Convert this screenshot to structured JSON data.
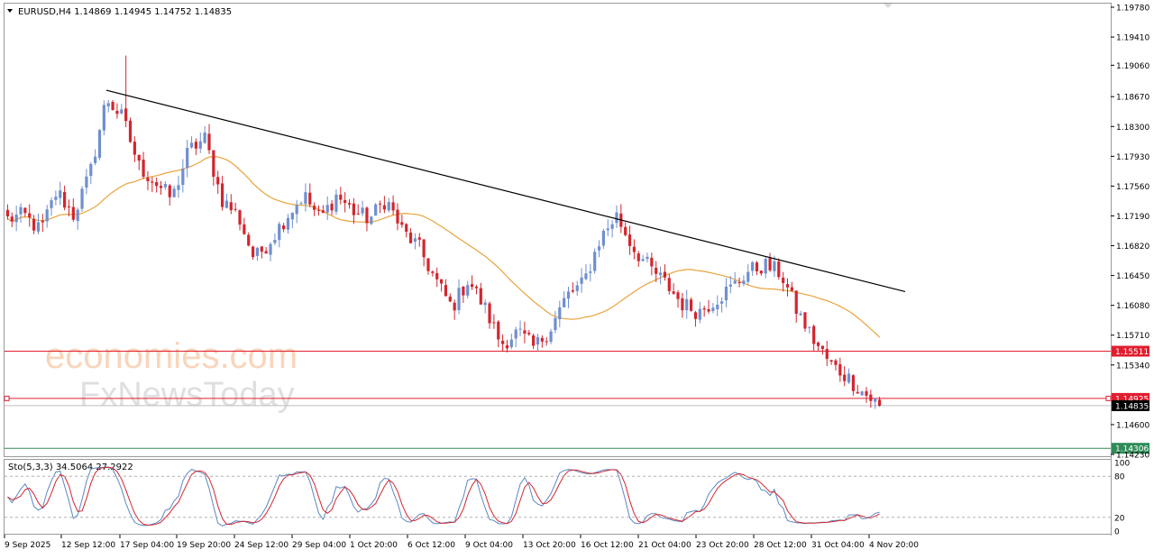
{
  "chart_data": [
    {
      "type": "candlestick",
      "symbol_header": "EURUSD,H4  1.14869 1.14945 1.14752 1.14835",
      "y_axis_ticks": [
        "1.19780",
        "1.19410",
        "1.19060",
        "1.18670",
        "1.18300",
        "1.17930",
        "1.17560",
        "1.17190",
        "1.16820",
        "1.16450",
        "1.16080",
        "1.15710",
        "1.15340",
        "1.14600",
        "1.14230"
      ],
      "ylim": [
        1.1423,
        1.1978
      ],
      "x_axis_labels": [
        "9 Sep 2025",
        "12 Sep 12:00",
        "17 Sep 04:00",
        "19 Sep 20:00",
        "24 Sep 12:00",
        "29 Sep 04:00",
        "1 Oct 20:00",
        "6 Oct 12:00",
        "9 Oct 04:00",
        "13 Oct 20:00",
        "16 Oct 12:00",
        "21 Oct 04:00",
        "23 Oct 20:00",
        "28 Oct 12:00",
        "31 Oct 04:00",
        "4 Nov 20:00"
      ],
      "close_anchors": [
        1.1715,
        1.172,
        1.17,
        1.175,
        1.172,
        1.177,
        1.1865,
        1.184,
        1.178,
        1.176,
        1.174,
        1.18,
        1.1815,
        1.174,
        1.172,
        1.1665,
        1.169,
        1.172,
        1.1745,
        1.1715,
        1.1745,
        1.1725,
        1.1715,
        1.174,
        1.17,
        1.168,
        1.164,
        1.1605,
        1.164,
        1.1605,
        1.156,
        1.1575,
        1.1555,
        1.158,
        1.162,
        1.1635,
        1.169,
        1.172,
        1.168,
        1.1655,
        1.1635,
        1.161,
        1.16,
        1.1615,
        1.163,
        1.165,
        1.1658,
        1.1648,
        1.16,
        1.1565,
        1.1535,
        1.152,
        1.15,
        1.14835
      ],
      "series": [
        {
          "name": "",
          "type": "moving-average",
          "color": "#e8a33c"
        }
      ],
      "horizontal_levels": [
        {
          "value": 1.15511,
          "label": "1.15511",
          "color": "#e01e2e"
        },
        {
          "value": 1.14925,
          "label": "1.14925",
          "color": "#e01e2e"
        },
        {
          "value": 1.14835,
          "label": "1.14835",
          "color": "#000000"
        },
        {
          "value": 1.14306,
          "label": "1.14306",
          "color": "#2e8b57"
        }
      ],
      "trendline": {
        "from": {
          "date": "12 Sep",
          "price": 1.1875
        },
        "to": {
          "date": "4 Nov",
          "price": 1.1625
        },
        "color": "#000000"
      },
      "colors": {
        "bull": "#6f8fd0",
        "bear": "#d2262e"
      }
    },
    {
      "type": "line",
      "title": "Sto(5,3,3) 34.5064 27.2922",
      "ylim": [
        0,
        100
      ],
      "y_axis_ticks": [
        "100",
        "80",
        "20",
        "0"
      ],
      "levels": [
        80,
        20
      ],
      "series": [
        {
          "name": "",
          "color": "#5b86c5"
        },
        {
          "name": "",
          "color": "#d2262e"
        }
      ]
    }
  ],
  "watermark": {
    "line1": "economies.com",
    "line2": "FxNewsToday"
  }
}
